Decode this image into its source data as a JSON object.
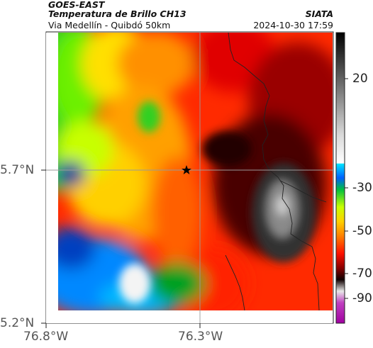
{
  "header": {
    "satellite": "GOES-EAST",
    "product": "Temperatura de Brillo CH13",
    "region": "Via Medellín - Quibdó 50km",
    "agency": "SIATA",
    "timestamp": "2024-10-30 17:59"
  },
  "axes": {
    "lat_ticks": [
      "5.7°N",
      "5.2°N"
    ],
    "lon_ticks": [
      "76.8°W",
      "76.3°W"
    ]
  },
  "colorbar": {
    "ticks": [
      "20",
      "-30",
      "-50",
      "-70",
      "-90"
    ]
  },
  "marker": {
    "icon": "star-icon"
  }
}
